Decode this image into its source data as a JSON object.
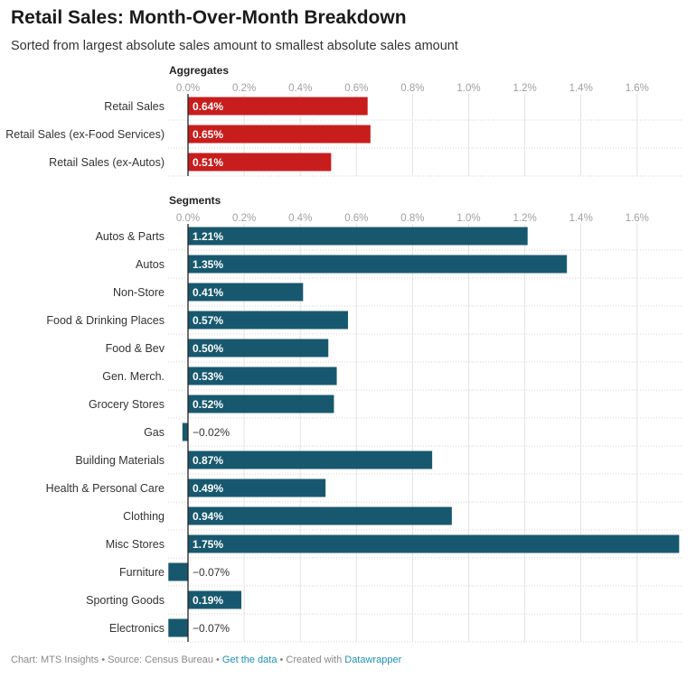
{
  "title": "Retail Sales: Month-Over-Month Breakdown",
  "subtitle": "Sorted from largest absolute sales amount to smallest absolute sales amount",
  "colors": {
    "aggregates": "#c71e1d",
    "segments": "#18586f"
  },
  "footer": {
    "prefix": "Chart: MTS Insights • Source: Census Bureau • ",
    "data_link": "Get the data",
    "middle": " • Created with ",
    "tool_link": "Datawrapper"
  },
  "chart_data": {
    "type": "bar",
    "orientation": "horizontal",
    "xlim": [
      -0.07,
      1.75
    ],
    "ticks": [
      0,
      0.2,
      0.4,
      0.6,
      0.8,
      1.0,
      1.2,
      1.4,
      1.6
    ],
    "tick_labels": [
      "0.0%",
      "0.2%",
      "0.4%",
      "0.6%",
      "0.8%",
      "1.0%",
      "1.2%",
      "1.4%",
      "1.6%"
    ],
    "grid": true,
    "groups": [
      {
        "name": "Aggregates",
        "color": "#c71e1d",
        "categories": [
          "Retail Sales",
          "Retail Sales (ex-Food Services)",
          "Retail Sales (ex-Autos)"
        ],
        "values": [
          0.64,
          0.65,
          0.51
        ],
        "labels": [
          "0.64%",
          "0.65%",
          "0.51%"
        ]
      },
      {
        "name": "Segments",
        "color": "#18586f",
        "categories": [
          "Autos & Parts",
          "Autos",
          "Non-Store",
          "Food & Drinking Places",
          "Food & Bev",
          "Gen. Merch.",
          "Grocery Stores",
          "Gas",
          "Building Materials",
          "Health & Personal Care",
          "Clothing",
          "Misc Stores",
          "Furniture",
          "Sporting Goods",
          "Electronics"
        ],
        "values": [
          1.21,
          1.35,
          0.41,
          0.57,
          0.5,
          0.53,
          0.52,
          -0.02,
          0.87,
          0.49,
          0.94,
          1.75,
          -0.07,
          0.19,
          -0.07
        ],
        "labels": [
          "1.21%",
          "1.35%",
          "0.41%",
          "0.57%",
          "0.50%",
          "0.53%",
          "0.52%",
          "−0.02%",
          "0.87%",
          "0.49%",
          "0.94%",
          "1.75%",
          "−0.07%",
          "0.19%",
          "−0.07%"
        ]
      }
    ]
  }
}
